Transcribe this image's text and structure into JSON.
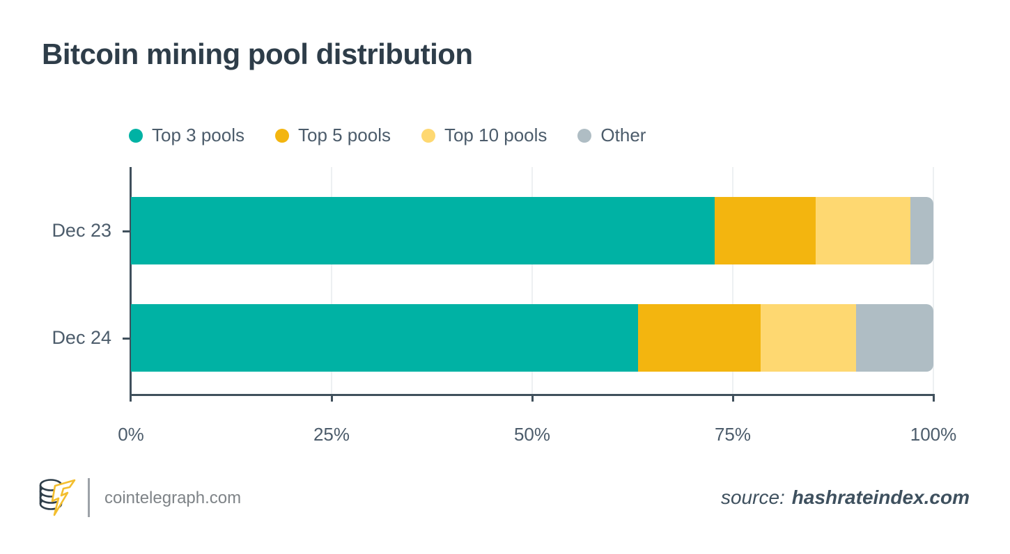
{
  "title": "Bitcoin mining pool distribution",
  "legend": [
    {
      "label": "Top 3 pools",
      "color": "#00B2A4"
    },
    {
      "label": "Top 5 pools",
      "color": "#F3B50F"
    },
    {
      "label": "Top 10 pools",
      "color": "#FED871"
    },
    {
      "label": "Other",
      "color": "#AFBDC4"
    }
  ],
  "chart_data": {
    "type": "bar",
    "orientation": "horizontal",
    "stacked": true,
    "title": "Bitcoin mining pool distribution",
    "categories": [
      "Dec 23",
      "Dec 24"
    ],
    "series": [
      {
        "name": "Top 3 pools",
        "color": "#00B2A4",
        "values": [
          72.7,
          63.2
        ]
      },
      {
        "name": "Top 5 pools",
        "color": "#F3B50F",
        "values": [
          12.6,
          15.3
        ]
      },
      {
        "name": "Top 10 pools",
        "color": "#FED871",
        "values": [
          11.8,
          11.9
        ]
      },
      {
        "name": "Other",
        "color": "#AFBDC4",
        "values": [
          2.9,
          9.6
        ]
      }
    ],
    "xlabel": "",
    "ylabel": "",
    "xlim": [
      0,
      100
    ],
    "x_ticks": [
      {
        "value": 0,
        "label": "0%"
      },
      {
        "value": 25,
        "label": "25%"
      },
      {
        "value": 50,
        "label": "50%"
      },
      {
        "value": 75,
        "label": "75%"
      },
      {
        "value": 100,
        "label": "100%"
      }
    ],
    "gridline_values": [
      25,
      50,
      75,
      100
    ],
    "grid": true,
    "legend_position": "top",
    "colors": {
      "axis": "#40505C",
      "gridline": "#EDF0F2",
      "tick_label": "#4C5C6B",
      "title": "#2E3D49"
    }
  },
  "footer": {
    "brand": "cointelegraph.com",
    "source_label": "source:",
    "source_value": "hashrateindex.com"
  }
}
